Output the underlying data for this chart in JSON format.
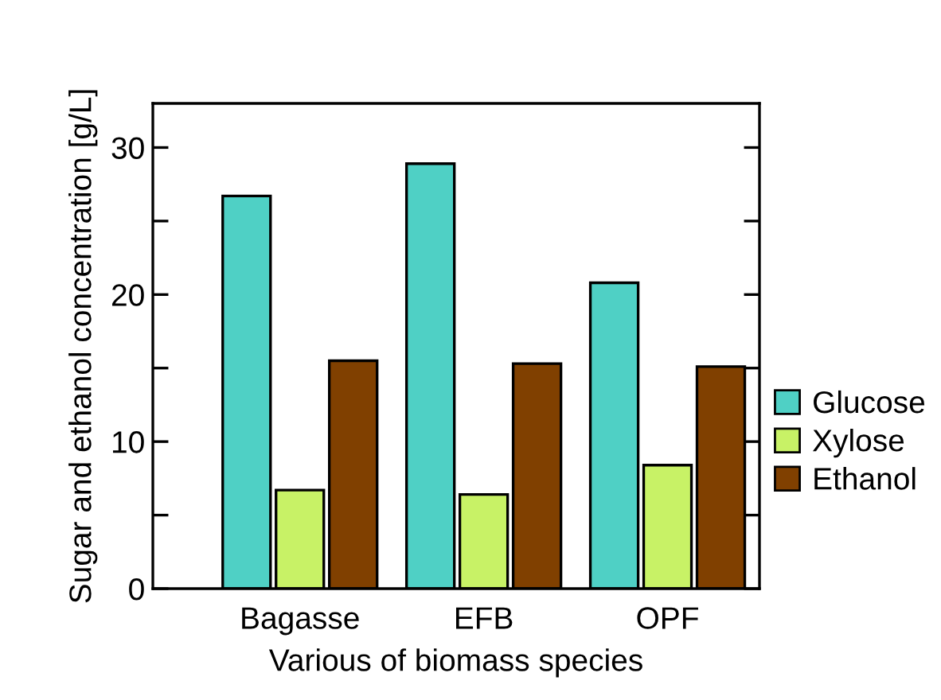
{
  "chart_data": {
    "type": "bar",
    "xlabel": "Various of biomass species",
    "ylabel": "Sugar and ethanol concentration [g/L]",
    "categories": [
      "Bagasse",
      "EFB",
      "OPF"
    ],
    "series": [
      {
        "name": "Glucose",
        "color": "#4fd0c5",
        "values": [
          26.7,
          28.9,
          20.8
        ]
      },
      {
        "name": "Xylose",
        "color": "#c8f266",
        "values": [
          6.7,
          6.4,
          8.4
        ]
      },
      {
        "name": "Ethanol",
        "color": "#804000",
        "values": [
          15.5,
          15.3,
          15.1
        ]
      }
    ],
    "ylim": [
      0,
      33
    ],
    "yticks": [
      0,
      {
        "value": 5,
        "label": null
      },
      10,
      {
        "value": 15,
        "label": null
      },
      20,
      {
        "value": 25,
        "label": null
      },
      30
    ],
    "grid": false,
    "legend": "right"
  }
}
